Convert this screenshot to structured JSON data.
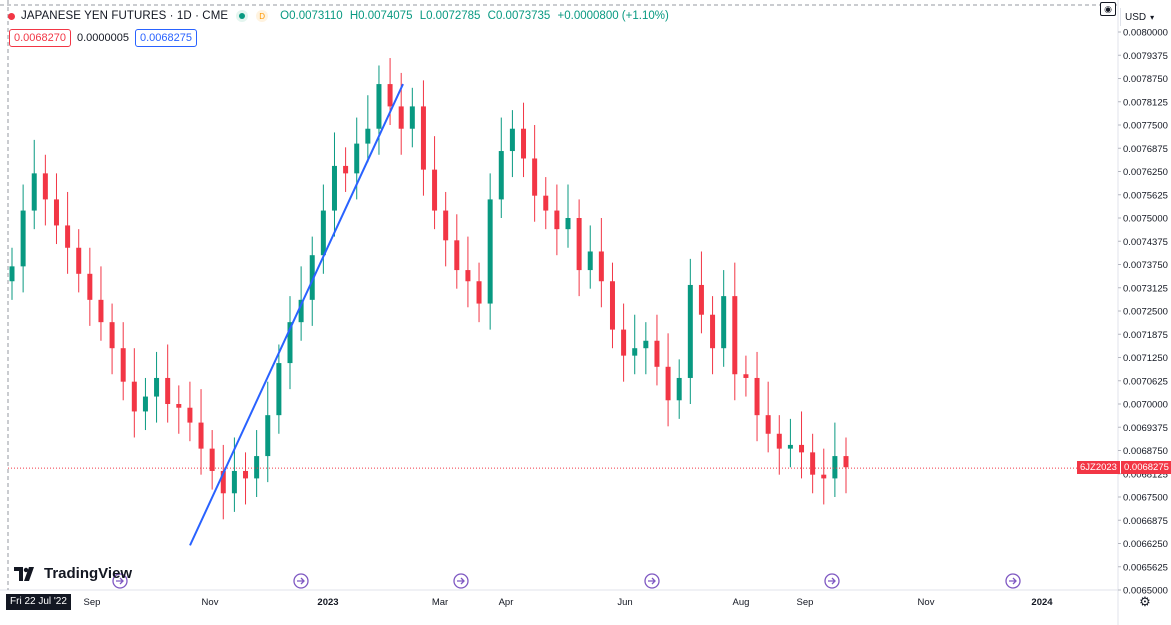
{
  "header": {
    "title": "JAPANESE YEN FUTURES · 1D · CME",
    "dot_color": "#f23645",
    "status_badge": "",
    "delay_badge": "D",
    "open": "O0.0073110",
    "high": "H0.0074075",
    "low": "L0.0072785",
    "close": "C0.0073735",
    "change": "+0.0000800 (+1.10%)"
  },
  "quote": {
    "bid": "0.0068270",
    "spread": "0.0000005",
    "ask": "0.0068275"
  },
  "currency": "USD",
  "last_price": {
    "symbol": "6JZ2023",
    "value": "0.0068275"
  },
  "logo_text": "TradingView",
  "cursor_date": "Fri 22 Jul '22",
  "colors": {
    "up": "#089981",
    "down": "#f23645",
    "trendline": "#2962ff",
    "event_marker": "#7e57c2"
  },
  "chart_data": {
    "type": "candlestick",
    "symbol": "6JZ2023",
    "ylim": [
      0.0065,
      0.008
    ],
    "y_ticks": [
      "0.0080000",
      "0.0079375",
      "0.0078750",
      "0.0078125",
      "0.0077500",
      "0.0076875",
      "0.0076250",
      "0.0075625",
      "0.0075000",
      "0.0074375",
      "0.0073750",
      "0.0073125",
      "0.0072500",
      "0.0071875",
      "0.0071250",
      "0.0070625",
      "0.0070000",
      "0.0069375",
      "0.0068750",
      "0.0068125",
      "0.0067500",
      "0.0066875",
      "0.0066250",
      "0.0065625",
      "0.0065000"
    ],
    "x_ticks": [
      "Sep",
      "Nov",
      "2023",
      "Mar",
      "Apr",
      "Jun",
      "Aug",
      "Sep",
      "Nov",
      "2024"
    ],
    "close_series": [
      0.00737,
      0.00752,
      0.00762,
      0.00755,
      0.00748,
      0.00742,
      0.00735,
      0.00728,
      0.00722,
      0.00715,
      0.00706,
      0.00698,
      0.00702,
      0.00707,
      0.007,
      0.00699,
      0.00695,
      0.00688,
      0.00682,
      0.00676,
      0.00682,
      0.0068,
      0.00686,
      0.00697,
      0.00711,
      0.00722,
      0.00728,
      0.0074,
      0.00752,
      0.00764,
      0.00762,
      0.0077,
      0.00774,
      0.00786,
      0.0078,
      0.00774,
      0.0078,
      0.00763,
      0.00752,
      0.00744,
      0.00736,
      0.00733,
      0.00727,
      0.00755,
      0.00768,
      0.00774,
      0.00766,
      0.00756,
      0.00752,
      0.00747,
      0.0075,
      0.00736,
      0.00741,
      0.00733,
      0.0072,
      0.00713,
      0.00715,
      0.00717,
      0.0071,
      0.00701,
      0.00707,
      0.00732,
      0.00724,
      0.00715,
      0.00729,
      0.00708,
      0.00707,
      0.00697,
      0.00692,
      0.00688,
      0.00689,
      0.00687,
      0.00681,
      0.0068,
      0.00686,
      0.00683
    ],
    "trendline": {
      "from": [
        "Oct 2022",
        0.00662
      ],
      "to": [
        "Feb 2023",
        0.00786
      ]
    },
    "last_value": 0.0068275
  }
}
